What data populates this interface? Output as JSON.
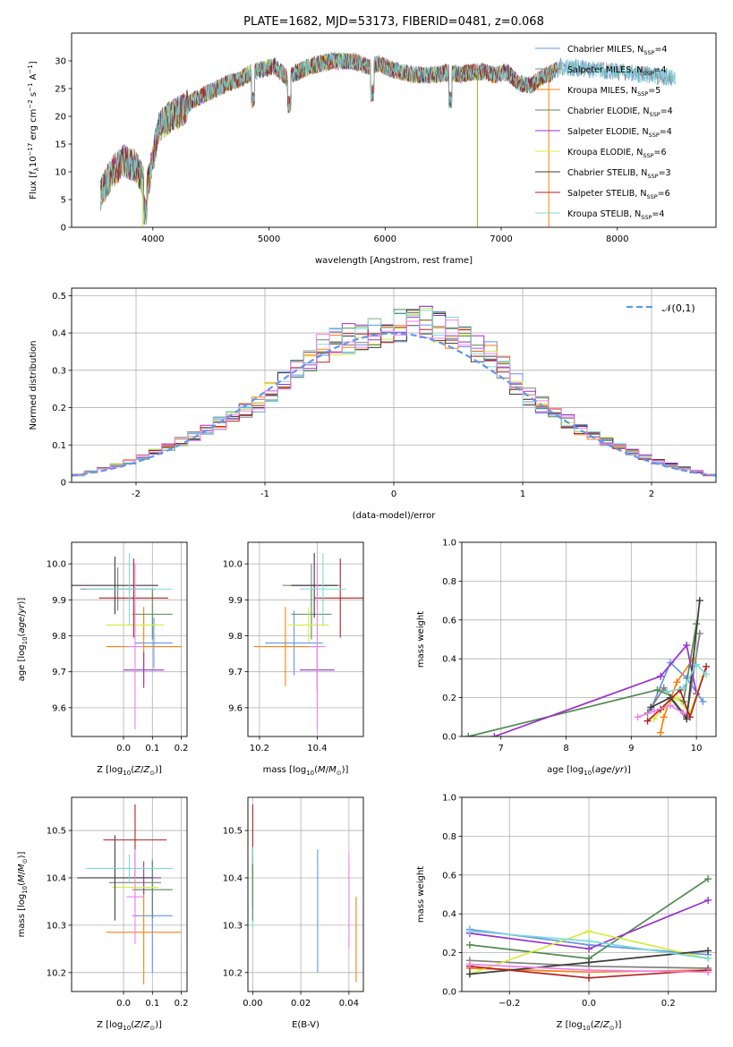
{
  "chart_data": [
    {
      "type": "line",
      "title": "PLATE=1682, MJD=53173, FIBERID=0481, z=0.068",
      "xlabel": "wavelength [Angstrom, rest frame]",
      "ylabel": "Flux [f",
      "xlim": [
        3300,
        8850
      ],
      "ylim": [
        0,
        35
      ],
      "xticks": [
        4000,
        5000,
        6000,
        7000,
        8000
      ],
      "yticks": [
        0,
        5,
        10,
        15,
        20,
        25,
        30
      ],
      "legend_position": "top-right",
      "series": [
        {
          "name": "Chabrier MILES, N_SSP=4",
          "color": "#6495ed"
        },
        {
          "name": "Salpeter MILES, N_SSP=4",
          "color": "#808080"
        },
        {
          "name": "Kroupa MILES, N_SSP=5",
          "color": "#ff7f0e"
        },
        {
          "name": "Chabrier ELODIE, N_SSP=4",
          "color": "#548b54"
        },
        {
          "name": "Salpeter ELODIE, N_SSP=4",
          "color": "#9932cc"
        },
        {
          "name": "Kroupa ELODIE, N_SSP=6",
          "color": "#d4ed3a"
        },
        {
          "name": "Chabrier STELIB, N_SSP=3",
          "color": "#3c3c3c"
        },
        {
          "name": "Salpeter STELIB, N_SSP=6",
          "color": "#b22222"
        },
        {
          "name": "Kroupa STELIB, N_SSP=4",
          "color": "#7fdada"
        }
      ],
      "spectrum_profile": {
        "x": [
          3550,
          3650,
          3750,
          3850,
          3950,
          4050,
          4150,
          4250,
          4350,
          4450,
          4550,
          4650,
          4750,
          4850,
          4950,
          5050,
          5150,
          5250,
          5350,
          5450,
          5550,
          5650,
          5750,
          5850,
          5950,
          6050,
          6150,
          6250,
          6350,
          6450,
          6550,
          6650,
          6750,
          6850,
          6950,
          7050,
          7150,
          7250,
          7350,
          7450,
          7500
        ],
        "y": [
          6,
          10,
          12,
          11,
          7,
          18,
          20,
          21,
          23,
          24,
          25,
          26,
          26.5,
          28,
          28.5,
          29,
          27,
          28,
          29,
          29.5,
          30,
          30,
          29.8,
          29,
          29.5,
          28.5,
          28,
          27.5,
          27.5,
          27.5,
          28,
          27.5,
          28,
          28,
          27.5,
          28,
          26,
          25.5,
          27,
          28,
          28.5
        ]
      },
      "absorption_dips": [
        3934,
        4861,
        5175,
        5890,
        6563
      ],
      "spikes": [
        3910,
        6795,
        7410
      ]
    },
    {
      "type": "bar",
      "xlabel": "(data-model)/error",
      "ylabel": "Normed distribution",
      "xlim": [
        -2.5,
        2.5
      ],
      "ylim": [
        0,
        0.52
      ],
      "xticks": [
        -2,
        -1,
        0,
        1,
        2
      ],
      "yticks": [
        0.0,
        0.1,
        0.2,
        0.3,
        0.4,
        0.5
      ],
      "legend_position": "top-right",
      "normal_curve": {
        "name": "𝒩(0,1)",
        "color": "#6495ed",
        "style": "dashed",
        "mu": 0,
        "sigma": 1
      },
      "bin_width": 0.1,
      "hist_envelope": {
        "x": [
          -2.5,
          -2.0,
          -1.5,
          -1.0,
          -0.8,
          -0.5,
          0,
          0.3,
          0.5,
          0.8,
          1.0,
          1.5,
          2.0,
          2.5
        ],
        "y": [
          0.015,
          0.06,
          0.13,
          0.22,
          0.3,
          0.37,
          0.42,
          0.43,
          0.39,
          0.33,
          0.24,
          0.13,
          0.06,
          0.015
        ]
      }
    },
    {
      "type": "scatter",
      "xlabel": "Z [log",
      "ylabel": "age  [log",
      "xlim": [
        -0.18,
        0.22
      ],
      "ylim": [
        9.52,
        10.06
      ],
      "xticks": [
        0.0,
        0.1,
        0.2
      ],
      "xtick_labels": [
        "0.0",
        "0.1",
        "0.2"
      ],
      "yticks": [
        9.6,
        9.7,
        9.8,
        9.9,
        10.0
      ],
      "yticklabels": [
        "9.6",
        "9.7",
        "9.8",
        "9.9",
        "10.0"
      ],
      "points": [
        {
          "x": 0.105,
          "y": 9.78,
          "xerr": 0.065,
          "yerr": 0.07,
          "color": "#6495ed"
        },
        {
          "x": -0.02,
          "y": 9.93,
          "xerr": 0.13,
          "yerr": 0.06,
          "color": "#808080"
        },
        {
          "x": 0.07,
          "y": 9.77,
          "xerr": 0.13,
          "yerr": 0.11,
          "color": "#ff7f0e"
        },
        {
          "x": 0.1,
          "y": 9.86,
          "xerr": 0.07,
          "yerr": 0.07,
          "color": "#548b54"
        },
        {
          "x": 0.07,
          "y": 9.705,
          "xerr": 0.07,
          "yerr": 0.05,
          "color": "#9932cc"
        },
        {
          "x": 0.04,
          "y": 9.83,
          "xerr": 0.1,
          "yerr": 0.05,
          "color": "#d4ed3a"
        },
        {
          "x": -0.03,
          "y": 9.94,
          "xerr": 0.15,
          "yerr": 0.08,
          "color": "#3c3c3c"
        },
        {
          "x": 0.035,
          "y": 9.905,
          "xerr": 0.12,
          "yerr": 0.11,
          "color": "#b22222"
        },
        {
          "x": 0.02,
          "y": 9.93,
          "xerr": 0.15,
          "yerr": 0.1,
          "color": "#7fdada"
        },
        {
          "x": 0.04,
          "y": 9.77,
          "xerr": 0.03,
          "yerr": 0.23,
          "color": "#ee82ee"
        }
      ]
    },
    {
      "type": "scatter",
      "xlabel": "mass [log",
      "ylabel": "",
      "xlim": [
        10.16,
        10.56
      ],
      "ylim": [
        9.52,
        10.06
      ],
      "xticks": [
        10.2,
        10.4
      ],
      "xtick_labels": [
        "10.2",
        "10.4"
      ],
      "yticks": [
        9.6,
        9.7,
        9.8,
        9.9,
        10.0
      ],
      "yticklabels": [
        "9.6",
        "9.7",
        "9.8",
        "9.9",
        "10.0"
      ],
      "points": [
        {
          "x": 10.32,
          "y": 9.78,
          "xerr": 0.1,
          "yerr": 0.09,
          "color": "#6495ed"
        },
        {
          "x": 10.38,
          "y": 9.94,
          "xerr": 0.1,
          "yerr": 0.06,
          "color": "#808080"
        },
        {
          "x": 10.29,
          "y": 9.77,
          "xerr": 0.11,
          "yerr": 0.11,
          "color": "#ff7f0e"
        },
        {
          "x": 10.38,
          "y": 9.86,
          "xerr": 0.07,
          "yerr": 0.07,
          "color": "#548b54"
        },
        {
          "x": 10.4,
          "y": 9.705,
          "xerr": 0.06,
          "yerr": 0.06,
          "color": "#9932cc"
        },
        {
          "x": 10.37,
          "y": 9.83,
          "xerr": 0.07,
          "yerr": 0.05,
          "color": "#d4ed3a"
        },
        {
          "x": 10.39,
          "y": 9.94,
          "xerr": 0.08,
          "yerr": 0.09,
          "color": "#3c3c3c"
        },
        {
          "x": 10.48,
          "y": 9.905,
          "xerr": 0.09,
          "yerr": 0.11,
          "color": "#b22222"
        },
        {
          "x": 10.42,
          "y": 9.93,
          "xerr": 0.08,
          "yerr": 0.1,
          "color": "#7fdada"
        },
        {
          "x": 10.4,
          "y": 9.77,
          "xerr": 0.03,
          "yerr": 0.23,
          "color": "#ee82ee"
        }
      ]
    },
    {
      "type": "line",
      "xlabel": "age  [log",
      "ylabel": "mass weight",
      "xlim": [
        6.4,
        10.3
      ],
      "ylim": [
        0,
        1.0
      ],
      "xticks": [
        7,
        8,
        9,
        10
      ],
      "xtick_labels": [
        "7",
        "8",
        "9",
        "10"
      ],
      "yticks": [
        0.0,
        0.2,
        0.4,
        0.6,
        0.8,
        1.0
      ],
      "yticklabels": [
        "0.0",
        "0.2",
        "0.4",
        "0.6",
        "0.8",
        "1.0"
      ],
      "series": [
        {
          "color": "#6495ed",
          "x": [
            9.3,
            9.6,
            9.85,
            10.1
          ],
          "y": [
            0.14,
            0.38,
            0.3,
            0.18
          ]
        },
        {
          "color": "#808080",
          "x": [
            9.25,
            9.5,
            9.85,
            10.05
          ],
          "y": [
            0.12,
            0.25,
            0.1,
            0.53
          ]
        },
        {
          "color": "#ff7f0e",
          "x": [
            9.45,
            9.5,
            9.7,
            9.95
          ],
          "y": [
            0.02,
            0.1,
            0.28,
            0.4
          ]
        },
        {
          "color": "#548b54",
          "x": [
            6.5,
            9.4,
            9.8,
            10.0
          ],
          "y": [
            0.0,
            0.24,
            0.18,
            0.58
          ]
        },
        {
          "color": "#9932cc",
          "x": [
            6.9,
            9.45,
            9.85,
            10.0
          ],
          "y": [
            0.0,
            0.31,
            0.47,
            0.22
          ]
        },
        {
          "color": "#d4ed3a",
          "x": [
            9.35,
            9.5,
            9.7,
            9.9,
            10.1
          ],
          "y": [
            0.09,
            0.15,
            0.2,
            0.12,
            0.31
          ]
        },
        {
          "color": "#3c3c3c",
          "x": [
            9.3,
            9.6,
            9.85,
            10.05
          ],
          "y": [
            0.15,
            0.2,
            0.09,
            0.7
          ]
        },
        {
          "color": "#b22222",
          "x": [
            9.25,
            9.45,
            9.75,
            9.9,
            10.15
          ],
          "y": [
            0.08,
            0.14,
            0.24,
            0.1,
            0.36
          ]
        },
        {
          "color": "#7fdada",
          "x": [
            9.55,
            9.8,
            10.0,
            10.15
          ],
          "y": [
            0.23,
            0.25,
            0.37,
            0.32
          ]
        },
        {
          "color": "#ee82ee",
          "x": [
            9.1,
            9.35,
            9.6,
            9.8
          ],
          "y": [
            0.1,
            0.13,
            0.16,
            0.12
          ]
        }
      ]
    },
    {
      "type": "scatter",
      "xlabel": "Z [log",
      "ylabel": "mass [log",
      "xlim": [
        -0.18,
        0.22
      ],
      "ylim": [
        10.16,
        10.57
      ],
      "xticks": [
        0.0,
        0.1,
        0.2
      ],
      "xtick_labels": [
        "0.0",
        "0.1",
        "0.2"
      ],
      "yticks": [
        10.2,
        10.3,
        10.4,
        10.5
      ],
      "yticklabels": [
        "10.2",
        "10.3",
        "10.4",
        "10.5"
      ],
      "points": [
        {
          "x": 0.1,
          "y": 10.32,
          "xerr": 0.07,
          "yerr": 0.12,
          "color": "#6495ed"
        },
        {
          "x": 0.04,
          "y": 10.39,
          "xerr": 0.09,
          "yerr": 0.06,
          "color": "#808080"
        },
        {
          "x": 0.07,
          "y": 10.285,
          "xerr": 0.13,
          "yerr": 0.11,
          "color": "#ff7f0e"
        },
        {
          "x": 0.1,
          "y": 10.375,
          "xerr": 0.07,
          "yerr": 0.06,
          "color": "#548b54"
        },
        {
          "x": 0.07,
          "y": 10.4,
          "xerr": 0.06,
          "yerr": 0.035,
          "color": "#9932cc"
        },
        {
          "x": 0.04,
          "y": 10.38,
          "xerr": 0.08,
          "yerr": 0.05,
          "color": "#d4ed3a"
        },
        {
          "x": -0.03,
          "y": 10.4,
          "xerr": 0.13,
          "yerr": 0.09,
          "color": "#3c3c3c"
        },
        {
          "x": 0.04,
          "y": 10.48,
          "xerr": 0.11,
          "yerr": 0.075,
          "color": "#b22222"
        },
        {
          "x": 0.02,
          "y": 10.42,
          "xerr": 0.15,
          "yerr": 0.03,
          "color": "#7fdada"
        },
        {
          "x": 0.04,
          "y": 10.36,
          "xerr": 0.03,
          "yerr": 0.1,
          "color": "#ee82ee"
        }
      ]
    },
    {
      "type": "scatter",
      "xlabel": "E(B-V)",
      "ylabel": "",
      "xlim": [
        -0.002,
        0.046
      ],
      "ylim": [
        10.16,
        10.57
      ],
      "xticks": [
        0.0,
        0.02,
        0.04
      ],
      "xtick_labels": [
        "0.00",
        "0.02",
        "0.04"
      ],
      "yticks": [
        10.2,
        10.3,
        10.4,
        10.5
      ],
      "yticklabels": [
        "10.2",
        "10.3",
        "10.4",
        "10.5"
      ],
      "points": [
        {
          "x": 0.0,
          "y": 10.48,
          "yerr": 0.075,
          "color": "#b22222"
        },
        {
          "x": 0.0,
          "y": 10.4,
          "yerr": 0.06,
          "color": "#3c3c3c"
        },
        {
          "x": 0.0,
          "y": 10.38,
          "yerr": 0.085,
          "color": "#7fdada"
        },
        {
          "x": 0.0,
          "y": 10.37,
          "yerr": 0.06,
          "color": "#548b54"
        },
        {
          "x": 0.027,
          "y": 10.33,
          "yerr": 0.13,
          "color": "#6495ed"
        },
        {
          "x": 0.04,
          "y": 10.35,
          "yerr": 0.1,
          "color": "#ee82ee"
        },
        {
          "x": 0.043,
          "y": 10.27,
          "yerr": 0.09,
          "color": "#ff7f0e"
        }
      ]
    },
    {
      "type": "line",
      "xlabel": "Z [log",
      "ylabel": "mass weight",
      "xlim": [
        -0.32,
        0.32
      ],
      "ylim": [
        0,
        1.0
      ],
      "xticks": [
        -0.2,
        0.0,
        0.2
      ],
      "xtick_labels": [
        "−0.2",
        "0.0",
        "0.2"
      ],
      "yticks": [
        0.0,
        0.2,
        0.4,
        0.6,
        0.8,
        1.0
      ],
      "yticklabels": [
        "0.0",
        "0.2",
        "0.4",
        "0.6",
        "0.8",
        "1.0"
      ],
      "series": [
        {
          "color": "#6495ed",
          "x": [
            -0.3,
            0.0,
            0.3
          ],
          "y": [
            0.32,
            0.24,
            0.19
          ]
        },
        {
          "color": "#808080",
          "x": [
            -0.3,
            0.0,
            0.3
          ],
          "y": [
            0.16,
            0.13,
            0.12
          ]
        },
        {
          "color": "#ff7f0e",
          "x": [
            -0.3,
            0.0,
            0.3
          ],
          "y": [
            0.12,
            0.1,
            0.11
          ]
        },
        {
          "color": "#548b54",
          "x": [
            -0.3,
            0.0,
            0.3
          ],
          "y": [
            0.24,
            0.17,
            0.58
          ]
        },
        {
          "color": "#9932cc",
          "x": [
            -0.3,
            0.0,
            0.3
          ],
          "y": [
            0.3,
            0.22,
            0.47
          ]
        },
        {
          "color": "#d4ed3a",
          "x": [
            -0.3,
            0.0,
            0.3
          ],
          "y": [
            0.09,
            0.31,
            0.17
          ]
        },
        {
          "color": "#3c3c3c",
          "x": [
            -0.3,
            0.0,
            0.3
          ],
          "y": [
            0.09,
            0.15,
            0.21
          ]
        },
        {
          "color": "#b22222",
          "x": [
            -0.3,
            0.0,
            0.3
          ],
          "y": [
            0.13,
            0.07,
            0.11
          ]
        },
        {
          "color": "#7fdada",
          "x": [
            -0.3,
            0.0,
            0.3
          ],
          "y": [
            0.31,
            0.26,
            0.17
          ]
        },
        {
          "color": "#ee82ee",
          "x": [
            -0.3,
            0.0,
            0.3
          ],
          "y": [
            0.14,
            0.11,
            0.1
          ]
        }
      ]
    }
  ]
}
